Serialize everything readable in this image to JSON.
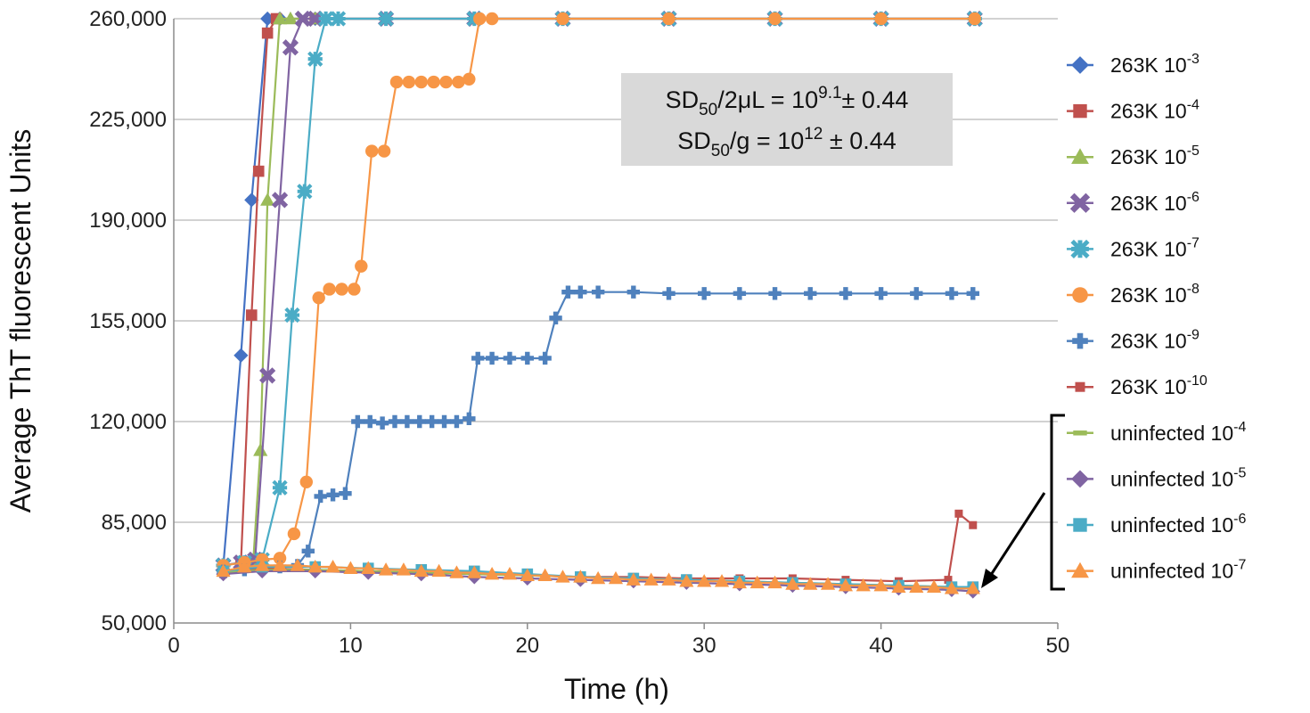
{
  "chart_data": {
    "type": "line",
    "title": "",
    "xlabel": "Time (h)",
    "ylabel": "Average ThT fluorescent Units",
    "xlim": [
      0,
      50
    ],
    "ylim": [
      50000,
      260000
    ],
    "x_ticks": [
      0,
      10,
      20,
      30,
      40,
      50
    ],
    "x_tick_labels": [
      "0",
      "10",
      "20",
      "30",
      "40",
      "50"
    ],
    "y_ticks": [
      50000,
      85000,
      120000,
      155000,
      190000,
      225000,
      260000
    ],
    "y_tick_labels": [
      "50,000",
      "85,000",
      "120,000",
      "155,000",
      "190,000",
      "225,000",
      "260,000"
    ],
    "grid": "horizontal",
    "legend_position": "right",
    "annotation": {
      "line1": {
        "a": "SD",
        "sub": "50",
        "b": "/2μL = 10",
        "sup": "9.1",
        "c": "± 0.44"
      },
      "line2": {
        "a": "SD",
        "sub": "50",
        "b": "/g = 10",
        "sup": "12",
        "c": " ± 0.44"
      },
      "background": "#d9d9d9"
    },
    "series": [
      {
        "name": "263K 10",
        "exp": "-3",
        "color": "#4472C4",
        "marker": "diamond",
        "x": [
          2.8,
          3.8,
          4.4,
          5.3,
          6,
          8,
          12,
          17,
          22,
          28,
          34,
          40,
          45.3
        ],
        "y": [
          70000,
          143000,
          197000,
          260000,
          260000,
          260000,
          260000,
          260000,
          260000,
          260000,
          260000,
          260000,
          260000
        ]
      },
      {
        "name": "263K 10",
        "exp": "-4",
        "color": "#C0504D",
        "marker": "square",
        "x": [
          2.8,
          3.8,
          4.4,
          4.8,
          5.3,
          5.8,
          8,
          12,
          17,
          22,
          28,
          34,
          40,
          45.3
        ],
        "y": [
          70000,
          71000,
          157000,
          207000,
          255000,
          260000,
          260000,
          260000,
          260000,
          260000,
          260000,
          260000,
          260000,
          260000
        ]
      },
      {
        "name": "263K 10",
        "exp": "-5",
        "color": "#9BBB59",
        "marker": "triangle",
        "x": [
          2.8,
          3.8,
          4.5,
          4.9,
          5.3,
          6.0,
          6.6,
          8,
          12,
          17,
          22,
          28,
          34,
          40,
          45.3
        ],
        "y": [
          70000,
          71000,
          72000,
          110000,
          197000,
          260000,
          260000,
          260000,
          260000,
          260000,
          260000,
          260000,
          260000,
          260000,
          260000
        ]
      },
      {
        "name": "263K 10",
        "exp": "-6",
        "color": "#8064A2",
        "marker": "x",
        "x": [
          2.8,
          3.8,
          4.6,
          5.3,
          6.0,
          6.6,
          7.3,
          8.0,
          12,
          17,
          22,
          28,
          34,
          40,
          45.3
        ],
        "y": [
          70000,
          71000,
          72000,
          136000,
          197000,
          250000,
          260000,
          260000,
          260000,
          260000,
          260000,
          260000,
          260000,
          260000,
          260000
        ]
      },
      {
        "name": "263K 10",
        "exp": "-7",
        "color": "#4BACC6",
        "marker": "star",
        "x": [
          2.8,
          4,
          5,
          6,
          6.7,
          7.4,
          8.0,
          8.6,
          9.3,
          12,
          17,
          22,
          28,
          34,
          40,
          45.3
        ],
        "y": [
          70000,
          71000,
          72000,
          97000,
          157000,
          200000,
          246000,
          260000,
          260000,
          260000,
          260000,
          260000,
          260000,
          260000,
          260000,
          260000
        ]
      },
      {
        "name": "263K 10",
        "exp": "-8",
        "color": "#F79646",
        "marker": "circle",
        "x": [
          2.8,
          4,
          5,
          6,
          6.8,
          7.5,
          8.2,
          8.8,
          9.5,
          10.2,
          10.6,
          11.2,
          11.9,
          12.6,
          13.3,
          14.0,
          14.7,
          15.4,
          16.1,
          16.7,
          17.3,
          18,
          22,
          28,
          34,
          40,
          45.3
        ],
        "y": [
          70000,
          71000,
          72000,
          72500,
          81000,
          99000,
          163000,
          166000,
          166000,
          166000,
          174000,
          214000,
          214000,
          238000,
          238000,
          238000,
          238000,
          238000,
          238000,
          239000,
          260000,
          260000,
          260000,
          260000,
          260000,
          260000,
          260000
        ]
      },
      {
        "name": "263K 10",
        "exp": "-9",
        "color": "#4F81BD",
        "marker": "plus",
        "x": [
          2.8,
          4,
          5,
          6,
          7,
          7.6,
          8.3,
          9,
          9.7,
          10.4,
          11.1,
          11.8,
          12.5,
          13.2,
          13.9,
          14.6,
          15.3,
          16,
          16.7,
          17.2,
          18,
          19,
          20,
          21,
          21.6,
          22.3,
          23,
          24,
          26,
          28,
          30,
          32,
          34,
          36,
          38,
          40,
          42,
          44,
          45.2
        ],
        "y": [
          68000,
          68500,
          69000,
          69500,
          70000,
          75000,
          94000,
          94500,
          95000,
          120000,
          120000,
          119500,
          120000,
          120000,
          120000,
          120000,
          120000,
          120000,
          121000,
          142000,
          142000,
          142000,
          142000,
          142000,
          156000,
          165000,
          165000,
          165000,
          165000,
          164500,
          164500,
          164500,
          164500,
          164500,
          164500,
          164500,
          164500,
          164500,
          164500
        ]
      },
      {
        "name": "263K 10",
        "exp": "-10",
        "color": "#C0504D",
        "marker": "small-square",
        "x": [
          2.8,
          5,
          8,
          11,
          14,
          17,
          20,
          23,
          26,
          29,
          32,
          35,
          38,
          41,
          43.8,
          44.4,
          45.2
        ],
        "y": [
          67000,
          69000,
          68500,
          68000,
          67500,
          67000,
          66500,
          66000,
          66000,
          65500,
          65500,
          65500,
          65000,
          64500,
          65000,
          88000,
          84000
        ]
      },
      {
        "name": "uninfected 10",
        "exp": "-4",
        "color": "#9BBB59",
        "marker": "dash",
        "x": [
          2.8,
          5,
          8,
          11,
          14,
          17,
          20,
          23,
          26,
          29,
          32,
          35,
          38,
          41,
          44,
          45.2
        ],
        "y": [
          67500,
          68500,
          68500,
          68000,
          67500,
          67000,
          66500,
          66000,
          65500,
          65000,
          64500,
          64000,
          63500,
          63000,
          62500,
          62000
        ]
      },
      {
        "name": "uninfected 10",
        "exp": "-5",
        "color": "#8064A2",
        "marker": "diamond",
        "x": [
          2.8,
          5,
          8,
          11,
          14,
          17,
          20,
          23,
          26,
          29,
          32,
          35,
          38,
          41,
          44,
          45.2
        ],
        "y": [
          67000,
          68000,
          68000,
          67500,
          67000,
          66000,
          65500,
          65000,
          64500,
          64000,
          63500,
          63000,
          62500,
          62000,
          61500,
          61000
        ]
      },
      {
        "name": "uninfected 10",
        "exp": "-6",
        "color": "#4BACC6",
        "marker": "square",
        "x": [
          2.8,
          5,
          8,
          11,
          14,
          17,
          20,
          23,
          26,
          29,
          32,
          35,
          38,
          41,
          44,
          45.2
        ],
        "y": [
          68000,
          69500,
          69500,
          69000,
          68500,
          68000,
          67000,
          66000,
          65500,
          65000,
          64500,
          64000,
          63500,
          63000,
          62500,
          62500
        ]
      },
      {
        "name": "uninfected 10",
        "exp": "-7",
        "color": "#F79646",
        "marker": "triangle",
        "x": [
          2.8,
          4,
          5,
          6,
          7,
          8,
          9,
          10,
          11,
          12,
          13,
          14,
          15,
          16,
          17,
          18,
          19,
          20,
          21,
          22,
          23,
          24,
          25,
          26,
          27,
          28,
          29,
          30,
          31,
          32,
          33,
          34,
          35,
          36,
          37,
          38,
          39,
          40,
          41,
          42,
          43,
          44,
          45.2
        ],
        "y": [
          68000,
          69500,
          70000,
          70000,
          70000,
          69500,
          69500,
          69000,
          69000,
          68500,
          68500,
          68000,
          68000,
          67500,
          67500,
          67000,
          67000,
          66500,
          66500,
          66000,
          66000,
          65500,
          65500,
          65000,
          65000,
          65000,
          64500,
          64500,
          64500,
          64000,
          64000,
          64000,
          63500,
          63500,
          63500,
          63000,
          63000,
          63000,
          62500,
          62500,
          62500,
          62000,
          62000
        ]
      }
    ]
  }
}
